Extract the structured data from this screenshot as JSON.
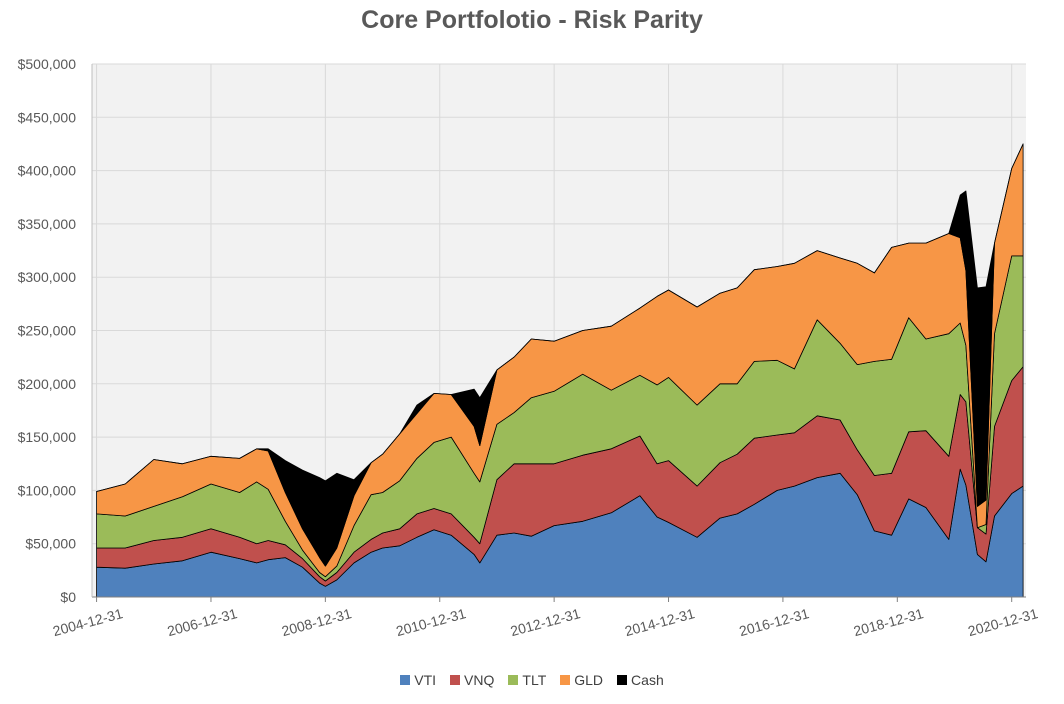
{
  "chart_data": {
    "type": "area",
    "stacked": true,
    "title": "Core Portfolotio - Risk Parity",
    "xlabel": "",
    "ylabel": "",
    "ylim": [
      0,
      500000
    ],
    "y_ticks": [
      0,
      50000,
      100000,
      150000,
      200000,
      250000,
      300000,
      350000,
      400000,
      450000,
      500000
    ],
    "y_tick_labels": [
      "$0",
      "$50,000",
      "$100,000",
      "$150,000",
      "$200,000",
      "$250,000",
      "$300,000",
      "$350,000",
      "$400,000",
      "$450,000",
      "$500,000"
    ],
    "x_range": [
      2004.92,
      2021.25
    ],
    "x_ticks": [
      2005.0,
      2007.0,
      2009.0,
      2011.0,
      2013.0,
      2015.0,
      2017.0,
      2019.0,
      2021.0
    ],
    "x_tick_labels": [
      "2004-12-31",
      "2006-12-31",
      "2008-12-31",
      "2010-12-31",
      "2012-12-31",
      "2014-12-31",
      "2016-12-31",
      "2018-12-31",
      "2020-12-31"
    ],
    "grid": true,
    "legend_position": "bottom",
    "x": [
      2005.0,
      2005.5,
      2006.0,
      2006.5,
      2007.0,
      2007.5,
      2007.8,
      2008.0,
      2008.3,
      2008.6,
      2008.9,
      2009.0,
      2009.2,
      2009.5,
      2009.8,
      2010.0,
      2010.3,
      2010.6,
      2010.9,
      2011.2,
      2011.6,
      2011.7,
      2012.0,
      2012.3,
      2012.6,
      2013.0,
      2013.5,
      2014.0,
      2014.5,
      2014.8,
      2015.0,
      2015.5,
      2015.9,
      2016.2,
      2016.5,
      2016.9,
      2017.2,
      2017.6,
      2018.0,
      2018.3,
      2018.6,
      2018.9,
      2019.2,
      2019.5,
      2019.9,
      2020.1,
      2020.2,
      2020.4,
      2020.55,
      2020.7,
      2021.0,
      2021.2
    ],
    "series": [
      {
        "name": "VTI",
        "color": "#4f81bd",
        "values": [
          28000,
          27000,
          31000,
          34000,
          42000,
          36000,
          32000,
          35000,
          37000,
          28000,
          13000,
          10000,
          16000,
          32000,
          42000,
          46000,
          48000,
          56000,
          63000,
          58000,
          40000,
          32000,
          58000,
          60000,
          57000,
          67000,
          71000,
          79000,
          95000,
          75000,
          70000,
          56000,
          74000,
          78000,
          87000,
          100000,
          104000,
          112000,
          116000,
          96000,
          62000,
          58000,
          92000,
          84000,
          54000,
          120000,
          105000,
          40000,
          33000,
          76000,
          97000,
          104000
        ]
      },
      {
        "name": "VNQ",
        "color": "#c0504d",
        "values": [
          18000,
          19000,
          22000,
          22000,
          22000,
          20000,
          18000,
          18000,
          12000,
          8000,
          6000,
          5000,
          7000,
          10000,
          12000,
          14000,
          16000,
          22000,
          20000,
          20000,
          16000,
          18000,
          52000,
          65000,
          68000,
          58000,
          62000,
          60000,
          56000,
          50000,
          58000,
          48000,
          52000,
          56000,
          62000,
          52000,
          50000,
          58000,
          50000,
          42000,
          52000,
          58000,
          63000,
          72000,
          78000,
          70000,
          78000,
          25000,
          26000,
          84000,
          106000,
          112000
        ]
      },
      {
        "name": "TLT",
        "color": "#9bbb59",
        "values": [
          32000,
          30000,
          32000,
          38000,
          42000,
          42000,
          58000,
          48000,
          22000,
          8000,
          4000,
          4000,
          6000,
          25000,
          42000,
          38000,
          45000,
          52000,
          62000,
          72000,
          60000,
          58000,
          52000,
          48000,
          62000,
          68000,
          76000,
          55000,
          57000,
          74000,
          78000,
          76000,
          74000,
          66000,
          72000,
          70000,
          60000,
          90000,
          72000,
          80000,
          107000,
          107000,
          107000,
          86000,
          115000,
          67000,
          53000,
          0,
          9000,
          87000,
          117000,
          104000
        ]
      },
      {
        "name": "GLD",
        "color": "#f79646",
        "values": [
          21000,
          30000,
          44000,
          31000,
          26000,
          32000,
          31000,
          36000,
          27000,
          20000,
          14000,
          10000,
          17000,
          28000,
          30000,
          36000,
          44000,
          42000,
          46000,
          40000,
          44000,
          34000,
          51000,
          52000,
          55000,
          47000,
          41000,
          60000,
          63000,
          83000,
          82000,
          92000,
          85000,
          90000,
          86000,
          88000,
          99000,
          65000,
          80000,
          95000,
          83000,
          105000,
          70000,
          90000,
          94000,
          80000,
          70000,
          20000,
          23000,
          85000,
          82000,
          105000
        ]
      },
      {
        "name": "Cash",
        "color": "#000000",
        "values": [
          0,
          0,
          0,
          0,
          0,
          0,
          0,
          2000,
          30000,
          55000,
          75000,
          80000,
          70000,
          15000,
          0,
          0,
          0,
          8000,
          0,
          0,
          35000,
          45000,
          0,
          0,
          0,
          0,
          0,
          0,
          0,
          0,
          0,
          0,
          0,
          0,
          0,
          0,
          0,
          0,
          0,
          0,
          0,
          0,
          0,
          0,
          0,
          40000,
          75000,
          205000,
          200000,
          0,
          0,
          0
        ]
      }
    ]
  }
}
